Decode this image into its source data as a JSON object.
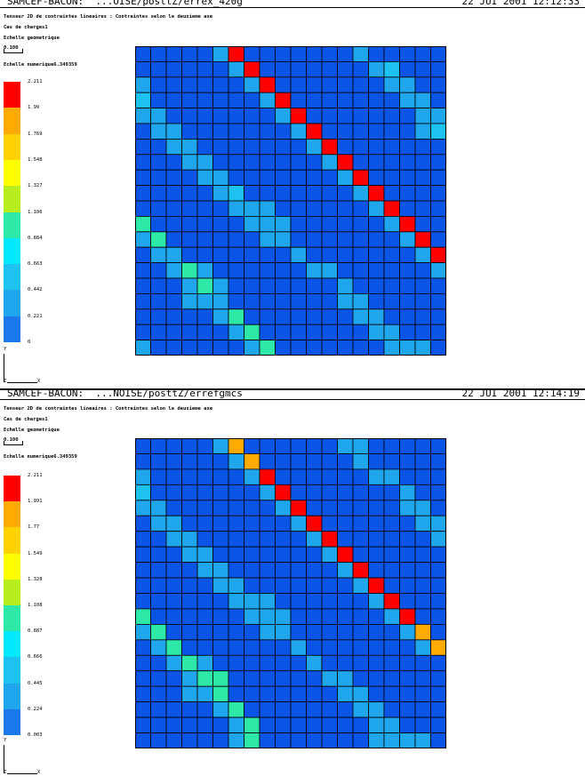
{
  "panels": [
    {
      "header_left": "SAMCEF-BACON:  ...OISE/posttZ/errex_420g",
      "header_right": "22 JUI 2001 12:12:33",
      "line1": "Tenseur 2D de contraintes lineaires : Contraintes selon le deuxieme axe",
      "line2": "Cas de charges1",
      "line3": "Echelle geometrique",
      "scale_value": "0.100",
      "num_scale": "Echelle numerique6.349359",
      "legend_labels": [
        "2.211",
        "1.99",
        "1.769",
        "1.548",
        "1.327",
        "1.106",
        "0.884",
        "0.663",
        "0.442",
        "0.221",
        "0"
      ],
      "axis_y": "Y",
      "axis_z": "Z",
      "axis_x": "X"
    },
    {
      "header_left": "SAMCEF-BACON:  ...NOISE/posttZ/errefgmcs",
      "header_right": "22 JUI 2001 12:14:19",
      "line1": "Tenseur 2D de contraintes lineaires : Contraintes selon le deuxieme axe",
      "line2": "Cas de charges1",
      "line3": "Echelle geometrique",
      "scale_value": "0.100",
      "num_scale": "Echelle numerique6.349359",
      "legend_labels": [
        "2.211",
        "1.991",
        "1.77",
        "1.549",
        "1.328",
        "1.108",
        "0.887",
        "0.666",
        "0.445",
        "0.224",
        "0.003"
      ],
      "axis_y": "Y",
      "axis_z": "Z",
      "axis_x": "X"
    }
  ],
  "colors": {
    "palette": [
      "#0a55e6",
      "#1a78ea",
      "#20a6ec",
      "#1ec2f0",
      "#00e8ff",
      "#2ee8a8",
      "#b8ee20",
      "#ffff00",
      "#ffd200",
      "#ffaa00",
      "#ff0000"
    ]
  },
  "chart_data": [
    {
      "type": "heatmap",
      "rows": 20,
      "cols": 20,
      "color_levels": [
        "0",
        "0.221",
        "0.442",
        "0.663",
        "0.884",
        "1.106",
        "1.327",
        "1.548",
        "1.769",
        "1.99",
        "2.211"
      ],
      "cells_level_index": [
        [
          0,
          0,
          0,
          0,
          0,
          2,
          10,
          0,
          0,
          0,
          0,
          0,
          0,
          0,
          2,
          0,
          0,
          0,
          0,
          0
        ],
        [
          0,
          0,
          0,
          0,
          0,
          0,
          2,
          10,
          0,
          0,
          0,
          0,
          0,
          0,
          0,
          2,
          3,
          0,
          0,
          0
        ],
        [
          2,
          0,
          0,
          0,
          0,
          0,
          0,
          2,
          10,
          0,
          0,
          0,
          0,
          0,
          0,
          0,
          2,
          2,
          0,
          0
        ],
        [
          3,
          0,
          0,
          0,
          0,
          0,
          0,
          0,
          2,
          10,
          0,
          0,
          0,
          0,
          0,
          0,
          0,
          2,
          2,
          0
        ],
        [
          2,
          2,
          0,
          0,
          0,
          0,
          0,
          0,
          0,
          2,
          10,
          0,
          0,
          0,
          0,
          0,
          0,
          0,
          2,
          2
        ],
        [
          0,
          2,
          2,
          0,
          0,
          0,
          0,
          0,
          0,
          0,
          2,
          10,
          0,
          0,
          0,
          0,
          0,
          0,
          2,
          3
        ],
        [
          0,
          0,
          2,
          2,
          0,
          0,
          0,
          0,
          0,
          0,
          0,
          2,
          10,
          0,
          0,
          0,
          0,
          0,
          0,
          0
        ],
        [
          0,
          0,
          0,
          2,
          2,
          0,
          0,
          0,
          0,
          0,
          0,
          0,
          2,
          10,
          0,
          0,
          0,
          0,
          0,
          0
        ],
        [
          0,
          0,
          0,
          0,
          2,
          2,
          0,
          0,
          0,
          0,
          0,
          0,
          0,
          2,
          10,
          0,
          0,
          0,
          0,
          0
        ],
        [
          0,
          0,
          0,
          0,
          0,
          2,
          3,
          0,
          0,
          0,
          0,
          0,
          0,
          0,
          2,
          10,
          0,
          0,
          0,
          0
        ],
        [
          0,
          0,
          0,
          0,
          0,
          0,
          2,
          2,
          2,
          0,
          0,
          0,
          0,
          0,
          0,
          2,
          10,
          0,
          0,
          0
        ],
        [
          5,
          0,
          0,
          0,
          0,
          0,
          0,
          2,
          2,
          2,
          0,
          0,
          0,
          0,
          0,
          0,
          2,
          10,
          0,
          0
        ],
        [
          2,
          5,
          0,
          0,
          0,
          0,
          0,
          0,
          2,
          2,
          0,
          0,
          0,
          0,
          0,
          0,
          0,
          2,
          10,
          0
        ],
        [
          0,
          2,
          2,
          0,
          0,
          0,
          0,
          0,
          0,
          0,
          2,
          0,
          0,
          0,
          0,
          0,
          0,
          0,
          2,
          10
        ],
        [
          0,
          0,
          2,
          5,
          2,
          0,
          0,
          0,
          0,
          0,
          0,
          2,
          2,
          0,
          0,
          0,
          0,
          0,
          0,
          2
        ],
        [
          0,
          0,
          0,
          2,
          5,
          2,
          0,
          0,
          0,
          0,
          0,
          0,
          0,
          2,
          0,
          0,
          0,
          0,
          0,
          0
        ],
        [
          0,
          0,
          0,
          2,
          2,
          2,
          0,
          0,
          0,
          0,
          0,
          0,
          0,
          2,
          2,
          0,
          0,
          0,
          0,
          0
        ],
        [
          0,
          0,
          0,
          0,
          0,
          2,
          5,
          0,
          0,
          0,
          0,
          0,
          0,
          0,
          2,
          2,
          0,
          0,
          0,
          0
        ],
        [
          0,
          0,
          0,
          0,
          0,
          0,
          2,
          5,
          0,
          0,
          0,
          0,
          0,
          0,
          0,
          2,
          2,
          0,
          0,
          0
        ],
        [
          2,
          0,
          0,
          0,
          0,
          0,
          0,
          2,
          5,
          0,
          0,
          0,
          0,
          0,
          0,
          0,
          2,
          2,
          2,
          0
        ]
      ]
    },
    {
      "type": "heatmap",
      "rows": 20,
      "cols": 20,
      "color_levels": [
        "0.003",
        "0.224",
        "0.445",
        "0.666",
        "0.887",
        "1.108",
        "1.328",
        "1.549",
        "1.77",
        "1.991",
        "2.211"
      ],
      "cells_level_index": [
        [
          0,
          0,
          0,
          0,
          0,
          2,
          9,
          0,
          0,
          0,
          0,
          0,
          0,
          2,
          2,
          0,
          0,
          0,
          0,
          0
        ],
        [
          0,
          0,
          0,
          0,
          0,
          0,
          2,
          9,
          0,
          0,
          0,
          0,
          0,
          0,
          2,
          0,
          0,
          0,
          0,
          0
        ],
        [
          2,
          0,
          0,
          0,
          0,
          0,
          0,
          2,
          10,
          0,
          0,
          0,
          0,
          0,
          0,
          2,
          2,
          0,
          0,
          0
        ],
        [
          3,
          0,
          0,
          0,
          0,
          0,
          0,
          0,
          2,
          10,
          0,
          0,
          0,
          0,
          0,
          0,
          0,
          2,
          0,
          0
        ],
        [
          2,
          2,
          0,
          0,
          0,
          0,
          0,
          0,
          0,
          2,
          10,
          0,
          0,
          0,
          0,
          0,
          0,
          2,
          2,
          0
        ],
        [
          0,
          2,
          2,
          0,
          0,
          0,
          0,
          0,
          0,
          0,
          2,
          10,
          0,
          0,
          0,
          0,
          0,
          0,
          2,
          2
        ],
        [
          0,
          0,
          2,
          2,
          0,
          0,
          0,
          0,
          0,
          0,
          0,
          2,
          10,
          0,
          0,
          0,
          0,
          0,
          0,
          2
        ],
        [
          0,
          0,
          0,
          2,
          2,
          0,
          0,
          0,
          0,
          0,
          0,
          0,
          2,
          10,
          0,
          0,
          0,
          0,
          0,
          0
        ],
        [
          0,
          0,
          0,
          0,
          2,
          2,
          0,
          0,
          0,
          0,
          0,
          0,
          0,
          2,
          10,
          0,
          0,
          0,
          0,
          0
        ],
        [
          0,
          0,
          0,
          0,
          0,
          2,
          2,
          0,
          0,
          0,
          0,
          0,
          0,
          0,
          2,
          10,
          0,
          0,
          0,
          0
        ],
        [
          0,
          0,
          0,
          0,
          0,
          0,
          2,
          2,
          2,
          0,
          0,
          0,
          0,
          0,
          0,
          2,
          10,
          0,
          0,
          0
        ],
        [
          5,
          0,
          0,
          0,
          0,
          0,
          0,
          2,
          2,
          2,
          0,
          0,
          0,
          0,
          0,
          0,
          2,
          10,
          0,
          0
        ],
        [
          2,
          5,
          0,
          0,
          0,
          0,
          0,
          0,
          2,
          2,
          0,
          0,
          0,
          0,
          0,
          0,
          0,
          2,
          9,
          0
        ],
        [
          0,
          2,
          5,
          0,
          0,
          0,
          0,
          0,
          0,
          0,
          2,
          0,
          0,
          0,
          0,
          0,
          0,
          0,
          2,
          9
        ],
        [
          0,
          0,
          2,
          5,
          2,
          0,
          0,
          0,
          0,
          0,
          0,
          2,
          0,
          0,
          0,
          0,
          0,
          0,
          0,
          0
        ],
        [
          0,
          0,
          0,
          2,
          5,
          5,
          0,
          0,
          0,
          0,
          0,
          0,
          2,
          2,
          0,
          0,
          0,
          0,
          0,
          0
        ],
        [
          0,
          0,
          0,
          2,
          2,
          5,
          0,
          0,
          0,
          0,
          0,
          0,
          0,
          2,
          2,
          0,
          0,
          0,
          0,
          0
        ],
        [
          0,
          0,
          0,
          0,
          0,
          2,
          5,
          0,
          0,
          0,
          0,
          0,
          0,
          0,
          2,
          2,
          0,
          0,
          0,
          0
        ],
        [
          0,
          0,
          0,
          0,
          0,
          0,
          2,
          5,
          0,
          0,
          0,
          0,
          0,
          0,
          0,
          2,
          2,
          0,
          0,
          0
        ],
        [
          0,
          0,
          0,
          0,
          0,
          0,
          2,
          5,
          0,
          0,
          0,
          0,
          0,
          0,
          0,
          2,
          2,
          2,
          2,
          0
        ]
      ]
    }
  ]
}
